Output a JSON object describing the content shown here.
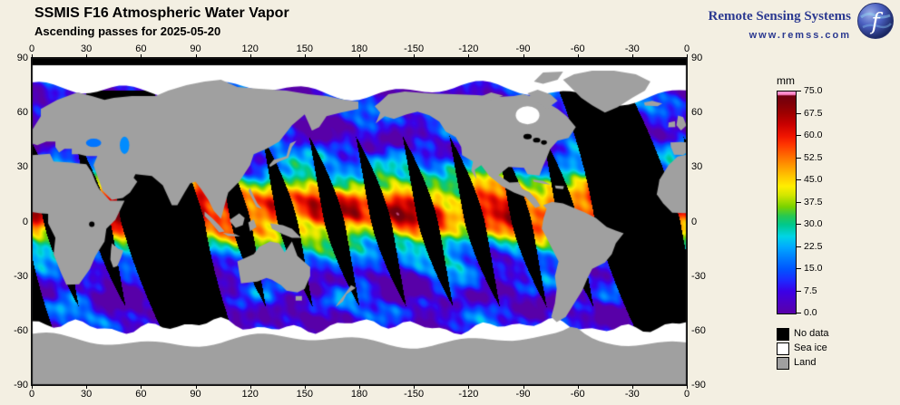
{
  "header": {
    "title": "SSMIS F16 Atmospheric Water Vapor",
    "subtitle": "Ascending passes for 2025-05-20"
  },
  "branding": {
    "name": "Remote Sensing Systems",
    "url": "www.remss.com"
  },
  "map": {
    "lon_ticks": [
      "0",
      "30",
      "60",
      "90",
      "120",
      "150",
      "180",
      "-150",
      "-120",
      "-90",
      "-60",
      "-30",
      "0"
    ],
    "lat_ticks": [
      "90",
      "60",
      "30",
      "0",
      "-30",
      "-60",
      "-90"
    ]
  },
  "colorbar": {
    "unit": "mm",
    "ticks": [
      "75.0",
      "67.5",
      "60.0",
      "52.5",
      "45.0",
      "37.5",
      "30.0",
      "22.5",
      "15.0",
      "7.5",
      "0.0"
    ]
  },
  "legend": [
    {
      "label": "No data",
      "color": "#000000"
    },
    {
      "label": "Sea ice",
      "color": "#ffffff"
    },
    {
      "label": "Land",
      "color": "#a0a0a0"
    }
  ],
  "colors": {
    "background": "#f3efe2",
    "brand": "#2b3990",
    "land": "#a0a0a0",
    "sea_ice": "#ffffff",
    "no_data": "#000000"
  },
  "chart_data": {
    "type": "heatmap",
    "title": "SSMIS F16 Atmospheric Water Vapor",
    "subtitle": "Ascending passes for 2025-05-20",
    "satellite": "SSMIS F16",
    "variable": "Atmospheric Water Vapor",
    "pass_type": "Ascending",
    "date": "2025-05-20",
    "units": "mm",
    "value_range": [
      0,
      75
    ],
    "colorbar_ticks": [
      75.0,
      67.5,
      60.0,
      52.5,
      45.0,
      37.5,
      30.0,
      22.5,
      15.0,
      7.5,
      0.0
    ],
    "x_axis": {
      "ticks_deg": [
        0,
        30,
        60,
        90,
        120,
        150,
        180,
        -150,
        -120,
        -90,
        -60,
        -30,
        0
      ],
      "span_deg": [
        0,
        360
      ]
    },
    "y_axis": {
      "ticks_deg": [
        90,
        60,
        30,
        0,
        -30,
        -60,
        -90
      ],
      "span_deg": [
        -90,
        90
      ]
    },
    "legend": [
      "No data",
      "Sea ice",
      "Land"
    ],
    "colormap": [
      {
        "v": 0,
        "c": "#5800a8"
      },
      {
        "v": 4,
        "c": "#4b00c8"
      },
      {
        "v": 7.5,
        "c": "#3b00e6"
      },
      {
        "v": 11,
        "c": "#1e28ff"
      },
      {
        "v": 15,
        "c": "#0055ff"
      },
      {
        "v": 19,
        "c": "#0080ff"
      },
      {
        "v": 22.5,
        "c": "#00aaff"
      },
      {
        "v": 26,
        "c": "#00d4e6"
      },
      {
        "v": 30,
        "c": "#00c88c"
      },
      {
        "v": 33,
        "c": "#28c850"
      },
      {
        "v": 36,
        "c": "#78d200"
      },
      {
        "v": 40,
        "c": "#d2e600"
      },
      {
        "v": 43,
        "c": "#ffee00"
      },
      {
        "v": 47,
        "c": "#ffbe00"
      },
      {
        "v": 50,
        "c": "#ff9600"
      },
      {
        "v": 53,
        "c": "#ff6e00"
      },
      {
        "v": 57,
        "c": "#ff3700"
      },
      {
        "v": 60,
        "c": "#f01400"
      },
      {
        "v": 64,
        "c": "#c80000"
      },
      {
        "v": 67.5,
        "c": "#a00000"
      },
      {
        "v": 71,
        "c": "#800008"
      },
      {
        "v": 73.5,
        "c": "#70000f"
      },
      {
        "v": 74,
        "c": "#ff82c8"
      },
      {
        "v": 75,
        "c": "#ff9ad2"
      }
    ]
  }
}
